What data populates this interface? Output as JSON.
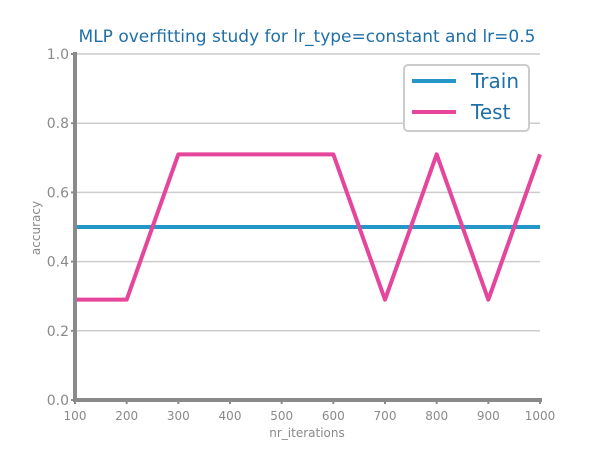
{
  "chart_data": {
    "type": "line",
    "title": "MLP overfitting study for lr_type=constant and lr=0.5",
    "xlabel": "nr_iterations",
    "ylabel": "accuracy",
    "x": [
      100,
      200,
      300,
      400,
      500,
      600,
      700,
      800,
      900,
      1000
    ],
    "x_tick_labels": [
      "100",
      "200",
      "300",
      "400",
      "500",
      "600",
      "700",
      "800",
      "900",
      "1000"
    ],
    "y_tick_labels": [
      "0.0",
      "0.2",
      "0.4",
      "0.6",
      "0.8",
      "1.0"
    ],
    "xlim": [
      100,
      1000
    ],
    "ylim": [
      0,
      1
    ],
    "grid": "horizontal",
    "legend_position": "top-right",
    "series": [
      {
        "name": "Train",
        "color": "#2596c8",
        "values": [
          0.5,
          0.5,
          0.5,
          0.5,
          0.5,
          0.5,
          0.5,
          0.5,
          0.5,
          0.5
        ]
      },
      {
        "name": "Test",
        "color": "#e5459b",
        "values": [
          0.29,
          0.29,
          0.71,
          0.71,
          0.71,
          0.71,
          0.29,
          0.71,
          0.29,
          0.71
        ]
      }
    ]
  }
}
